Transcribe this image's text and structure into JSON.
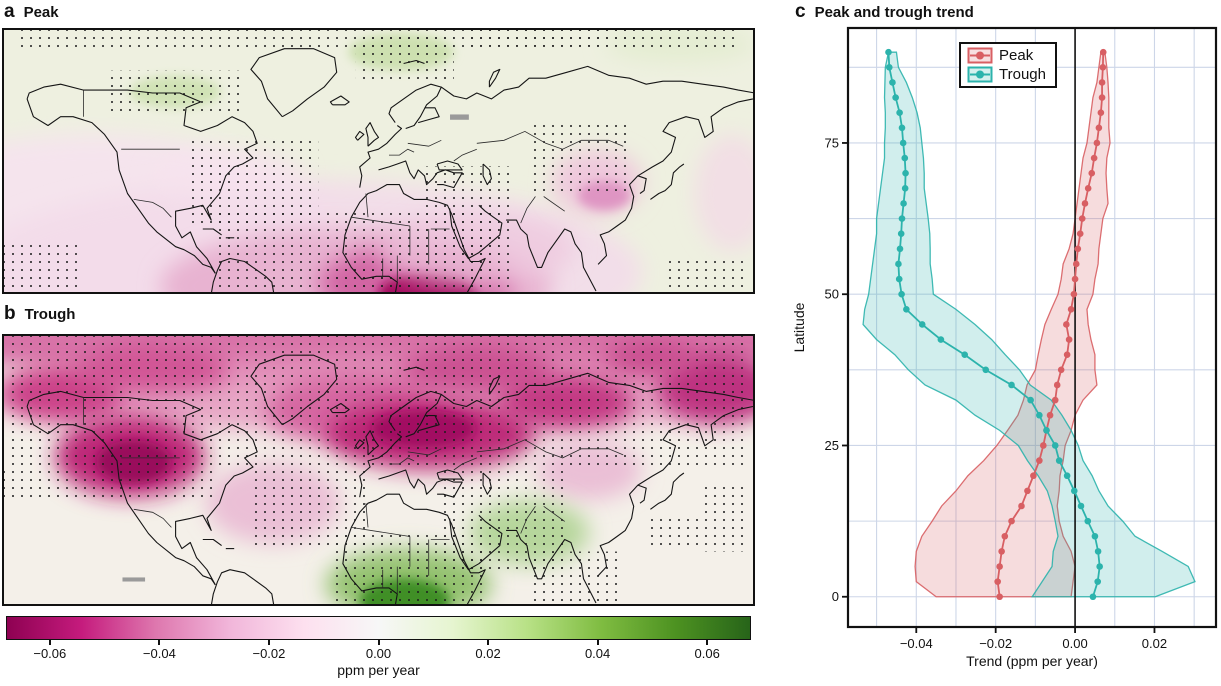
{
  "figure": {
    "panel_a": {
      "label": "a",
      "title": "Peak"
    },
    "panel_b": {
      "label": "b",
      "title": "Trough"
    },
    "panel_c": {
      "label": "c",
      "title": "Peak and trough trend",
      "xlabel": "Trend (ppm per year)",
      "ylabel": "Latitude",
      "legend": {
        "peak": "Peak",
        "trough": "Trough"
      }
    },
    "colorbar": {
      "label": "ppm per year",
      "tick_values": [
        -0.06,
        -0.04,
        -0.02,
        0.0,
        0.02,
        0.04,
        0.06
      ],
      "tick_labels": [
        "−0.06",
        "−0.04",
        "−0.02",
        "0.00",
        "0.02",
        "0.04",
        "0.06"
      ],
      "range": [
        -0.068,
        0.068
      ],
      "cmap_piyg": [
        "#8E0152",
        "#C51B7D",
        "#DE77AE",
        "#F1B6DA",
        "#FDE0EF",
        "#F7F7F7",
        "#E6F5D0",
        "#B8E186",
        "#7FBC41",
        "#4D9221",
        "#276419"
      ]
    }
  },
  "chart_data": [
    {
      "type": "heatmap",
      "panel": "a",
      "title": "Peak",
      "geometry": "world map, ~0-90N latitude, equirectangular, black coastlines and country borders, stippling dots mark significance",
      "units": "ppm per year",
      "colorbar_range": [
        -0.068,
        0.068
      ],
      "notable_regions": [
        {
          "region": "West/Central Africa",
          "value": -0.06
        },
        {
          "region": "Tropical Atlantic / northern South America",
          "value": -0.02
        },
        {
          "region": "Arabia and India",
          "value": -0.01
        },
        {
          "region": "Eastern China",
          "value": -0.02
        },
        {
          "region": "High northern latitudes",
          "value": 0.005
        },
        {
          "region": "Alaska/Bering and Urals patches",
          "value": 0.015
        }
      ]
    },
    {
      "type": "heatmap",
      "panel": "b",
      "title": "Trough",
      "geometry": "world map, ~0-90N latitude, equirectangular, black coastlines and country borders, dense stippling over northern latitudes",
      "units": "ppm per year",
      "colorbar_range": [
        -0.068,
        0.068
      ],
      "notable_regions": [
        {
          "region": "Pan-Arctic / boreal band",
          "value": -0.04
        },
        {
          "region": "Eastern North America (Great Lakes)",
          "value": -0.06
        },
        {
          "region": "Central Asia / southern Siberia",
          "value": -0.055
        },
        {
          "region": "Far-east Siberia",
          "value": -0.05
        },
        {
          "region": "Central Africa",
          "value": 0.05
        },
        {
          "region": "Northeast India / Himalaya",
          "value": 0.025
        },
        {
          "region": "Subtropical oceans band",
          "value": 0.0
        }
      ]
    },
    {
      "type": "line",
      "panel": "c",
      "title": "Peak and trough trend",
      "xlabel": "Trend (ppm per year)",
      "ylabel": "Latitude",
      "xlim": [
        -0.0572,
        0.0355
      ],
      "ylim": [
        -5,
        94
      ],
      "x_ticks": [
        -0.04,
        -0.02,
        0.0,
        0.02
      ],
      "x_tick_labels": [
        "−0.04",
        "−0.02",
        "0.00",
        "0.02"
      ],
      "y_ticks": [
        0,
        25,
        50,
        75
      ],
      "y_tick_labels": [
        "0",
        "25",
        "50",
        "75"
      ],
      "grid": {
        "x_step": 0.01,
        "y_step": 12.5,
        "color": "#cdd6e8"
      },
      "zero_line_x": 0.0,
      "legend_position": "top-center",
      "latitude": [
        0,
        2.5,
        5,
        7.5,
        10,
        12.5,
        15,
        17.5,
        20,
        22.5,
        25,
        27.5,
        30,
        32.5,
        35,
        37.5,
        40,
        42.5,
        45,
        47.5,
        50,
        52.5,
        55,
        57.5,
        60,
        62.5,
        65,
        67.5,
        70,
        72.5,
        75,
        77.5,
        80,
        82.5,
        85,
        87.5,
        90
      ],
      "series": [
        {
          "name": "Peak",
          "color": "#d85f63",
          "trend": [
            -0.019,
            -0.0195,
            -0.019,
            -0.0185,
            -0.0177,
            -0.016,
            -0.0135,
            -0.012,
            -0.0105,
            -0.009,
            -0.008,
            -0.0072,
            -0.0063,
            -0.005,
            -0.0045,
            -0.0035,
            -0.002,
            -0.0015,
            -0.0022,
            -0.001,
            -0.0003,
            0,
            0.0003,
            0.0007,
            0.0013,
            0.0018,
            0.0025,
            0.0033,
            0.0042,
            0.0048,
            0.0055,
            0.006,
            0.0065,
            0.0068,
            0.0068,
            0.007,
            0.0071
          ],
          "band_low": [
            -0.035,
            -0.04,
            -0.0403,
            -0.04,
            -0.0386,
            -0.036,
            -0.0336,
            -0.03,
            -0.027,
            -0.023,
            -0.0197,
            -0.017,
            -0.0144,
            -0.013,
            -0.0121,
            -0.01,
            -0.0093,
            -0.0085,
            -0.0076,
            -0.006,
            -0.0043,
            -0.0035,
            -0.003,
            -0.0015,
            -0.0005,
            0,
            0.0005,
            0.001,
            0.0015,
            0.002,
            0.003,
            0.0035,
            0.004,
            0.0045,
            0.0055,
            0.006,
            0.0065
          ],
          "band_high": [
            -0.001,
            -0.0005,
            0,
            -0.001,
            -0.003,
            -0.004,
            -0.0045,
            -0.004,
            -0.0038,
            -0.003,
            -0.0025,
            -0.001,
            0,
            0.002,
            0.0055,
            0.005,
            0.005,
            0.004,
            0.0033,
            0.003,
            0.0045,
            0.005,
            0.0058,
            0.006,
            0.0065,
            0.007,
            0.0083,
            0.008,
            0.0078,
            0.008,
            0.0088,
            0.0085,
            0.0085,
            0.0085,
            0.0083,
            0.008,
            0.0075
          ]
        },
        {
          "name": "Trough",
          "color": "#2cb3ac",
          "trend": [
            0.0045,
            0.0057,
            0.0062,
            0.0058,
            0.005,
            0.0032,
            0.0015,
            -0.0002,
            -0.002,
            -0.004,
            -0.005,
            -0.0072,
            -0.009,
            -0.0112,
            -0.016,
            -0.0225,
            -0.0278,
            -0.0338,
            -0.0385,
            -0.0425,
            -0.0437,
            -0.0443,
            -0.0445,
            -0.0441,
            -0.0438,
            -0.0436,
            -0.0432,
            -0.0428,
            -0.0427,
            -0.0429,
            -0.0433,
            -0.0436,
            -0.0442,
            -0.0452,
            -0.046,
            -0.0468,
            -0.047
          ],
          "band_low": [
            -0.0108,
            -0.0083,
            -0.0058,
            -0.0055,
            -0.0043,
            -0.005,
            -0.0058,
            -0.007,
            -0.0093,
            -0.012,
            -0.0143,
            -0.019,
            -0.0252,
            -0.03,
            -0.0378,
            -0.042,
            -0.0454,
            -0.05,
            -0.0534,
            -0.053,
            -0.052,
            -0.0515,
            -0.051,
            -0.0505,
            -0.05,
            -0.05,
            -0.0495,
            -0.049,
            -0.0485,
            -0.048,
            -0.048,
            -0.0478,
            -0.0478,
            -0.048,
            -0.0479,
            -0.0478,
            -0.047
          ],
          "band_high": [
            0.0202,
            0.0302,
            0.0285,
            0.0219,
            0.0151,
            0.012,
            0.0083,
            0.006,
            0.0043,
            0.002,
            0.0008,
            -0.001,
            -0.0033,
            -0.006,
            -0.0113,
            -0.014,
            -0.0176,
            -0.021,
            -0.0252,
            -0.03,
            -0.0357,
            -0.036,
            -0.0365,
            -0.0365,
            -0.0366,
            -0.037,
            -0.0375,
            -0.038,
            -0.038,
            -0.0382,
            -0.0386,
            -0.039,
            -0.0398,
            -0.041,
            -0.0425,
            -0.0445,
            -0.045
          ]
        }
      ]
    }
  ]
}
